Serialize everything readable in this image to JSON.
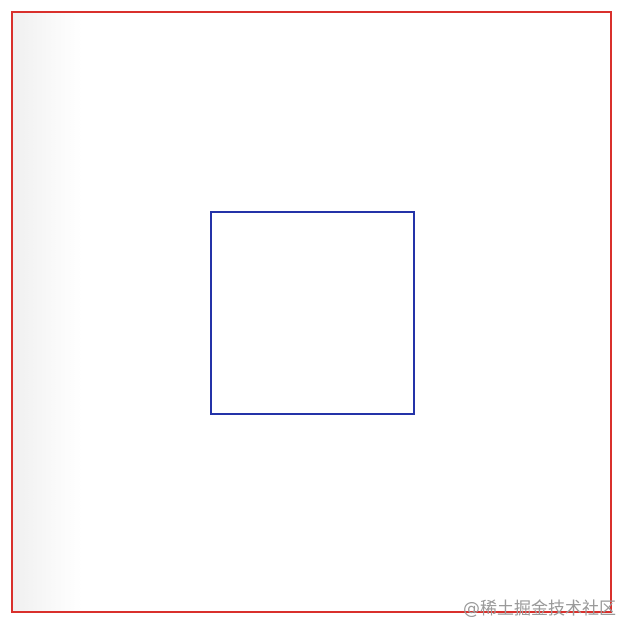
{
  "colors": {
    "outer_border": "#d9302c",
    "inner_border": "#2433a8",
    "background": "#ffffff",
    "watermark": "#9a9a9a"
  },
  "watermark": {
    "text": "@稀土掘金技术社区"
  }
}
